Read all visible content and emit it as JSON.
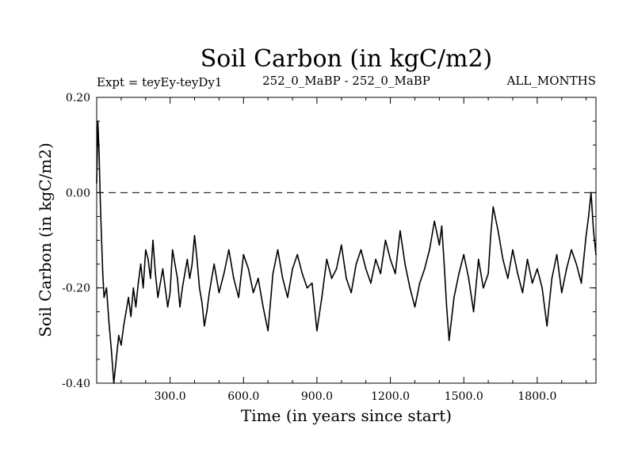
{
  "chart_data": {
    "type": "line",
    "title": "Soil Carbon (in kgC/m2)",
    "subtitle_left": "Expt = teyEy-teyDy1",
    "subtitle_center": "252_0_MaBP - 252_0_MaBP",
    "subtitle_right": "ALL_MONTHS",
    "xlabel": "Time (in years since start)",
    "ylabel": "Soil Carbon (in kgC/m2)",
    "xlim": [
      0,
      2040
    ],
    "ylim": [
      -0.4,
      0.2
    ],
    "x_ticks": [
      {
        "value": 300,
        "label": "300.0"
      },
      {
        "value": 600,
        "label": "600.0"
      },
      {
        "value": 900,
        "label": "900.0"
      },
      {
        "value": 1200,
        "label": "1200.0"
      },
      {
        "value": 1500,
        "label": "1500.0"
      },
      {
        "value": 1800,
        "label": "1800.0"
      }
    ],
    "y_ticks": [
      {
        "value": 0.2,
        "label": "0.20"
      },
      {
        "value": 0.0,
        "label": "0.00"
      },
      {
        "value": -0.2,
        "label": "-0.20"
      },
      {
        "value": -0.4,
        "label": "-0.40"
      }
    ],
    "reference_line": {
      "value": 0.0,
      "style": "dashed"
    },
    "series": [
      {
        "name": "Soil Carbon",
        "x": [
          0,
          5,
          10,
          15,
          20,
          25,
          30,
          40,
          50,
          60,
          70,
          80,
          90,
          100,
          110,
          120,
          130,
          140,
          150,
          160,
          170,
          180,
          190,
          200,
          210,
          220,
          230,
          240,
          250,
          260,
          270,
          280,
          290,
          300,
          310,
          320,
          330,
          340,
          350,
          360,
          370,
          380,
          390,
          400,
          410,
          420,
          430,
          440,
          450,
          460,
          470,
          480,
          490,
          500,
          520,
          540,
          560,
          580,
          600,
          620,
          640,
          660,
          680,
          700,
          720,
          740,
          760,
          780,
          800,
          820,
          840,
          860,
          880,
          900,
          920,
          940,
          960,
          980,
          1000,
          1020,
          1040,
          1060,
          1080,
          1100,
          1120,
          1140,
          1160,
          1180,
          1200,
          1220,
          1240,
          1260,
          1280,
          1300,
          1320,
          1340,
          1360,
          1380,
          1400,
          1410,
          1420,
          1430,
          1440,
          1460,
          1480,
          1500,
          1520,
          1540,
          1560,
          1580,
          1600,
          1610,
          1620,
          1640,
          1660,
          1680,
          1700,
          1720,
          1740,
          1760,
          1780,
          1800,
          1820,
          1840,
          1860,
          1880,
          1900,
          1920,
          1940,
          1960,
          1980,
          2000,
          2010,
          2020,
          2030,
          2040
        ],
        "y": [
          0.02,
          0.15,
          0.08,
          -0.02,
          -0.1,
          -0.17,
          -0.22,
          -0.2,
          -0.27,
          -0.33,
          -0.4,
          -0.35,
          -0.3,
          -0.32,
          -0.28,
          -0.25,
          -0.22,
          -0.26,
          -0.2,
          -0.24,
          -0.19,
          -0.15,
          -0.2,
          -0.12,
          -0.14,
          -0.18,
          -0.1,
          -0.17,
          -0.22,
          -0.19,
          -0.16,
          -0.2,
          -0.24,
          -0.21,
          -0.12,
          -0.15,
          -0.18,
          -0.24,
          -0.2,
          -0.17,
          -0.14,
          -0.18,
          -0.15,
          -0.09,
          -0.14,
          -0.2,
          -0.23,
          -0.28,
          -0.25,
          -0.21,
          -0.18,
          -0.15,
          -0.18,
          -0.21,
          -0.17,
          -0.12,
          -0.18,
          -0.22,
          -0.13,
          -0.16,
          -0.21,
          -0.18,
          -0.24,
          -0.29,
          -0.17,
          -0.12,
          -0.18,
          -0.22,
          -0.16,
          -0.13,
          -0.17,
          -0.2,
          -0.19,
          -0.29,
          -0.22,
          -0.14,
          -0.18,
          -0.16,
          -0.11,
          -0.18,
          -0.21,
          -0.15,
          -0.12,
          -0.16,
          -0.19,
          -0.14,
          -0.17,
          -0.1,
          -0.14,
          -0.17,
          -0.08,
          -0.15,
          -0.2,
          -0.24,
          -0.19,
          -0.16,
          -0.12,
          -0.06,
          -0.11,
          -0.07,
          -0.15,
          -0.24,
          -0.31,
          -0.22,
          -0.17,
          -0.13,
          -0.18,
          -0.25,
          -0.14,
          -0.2,
          -0.17,
          -0.09,
          -0.03,
          -0.08,
          -0.14,
          -0.18,
          -0.12,
          -0.17,
          -0.21,
          -0.14,
          -0.19,
          -0.16,
          -0.2,
          -0.28,
          -0.18,
          -0.13,
          -0.21,
          -0.16,
          -0.12,
          -0.15,
          -0.19,
          -0.09,
          -0.05,
          0.0,
          -0.08,
          -0.13
        ]
      }
    ]
  }
}
